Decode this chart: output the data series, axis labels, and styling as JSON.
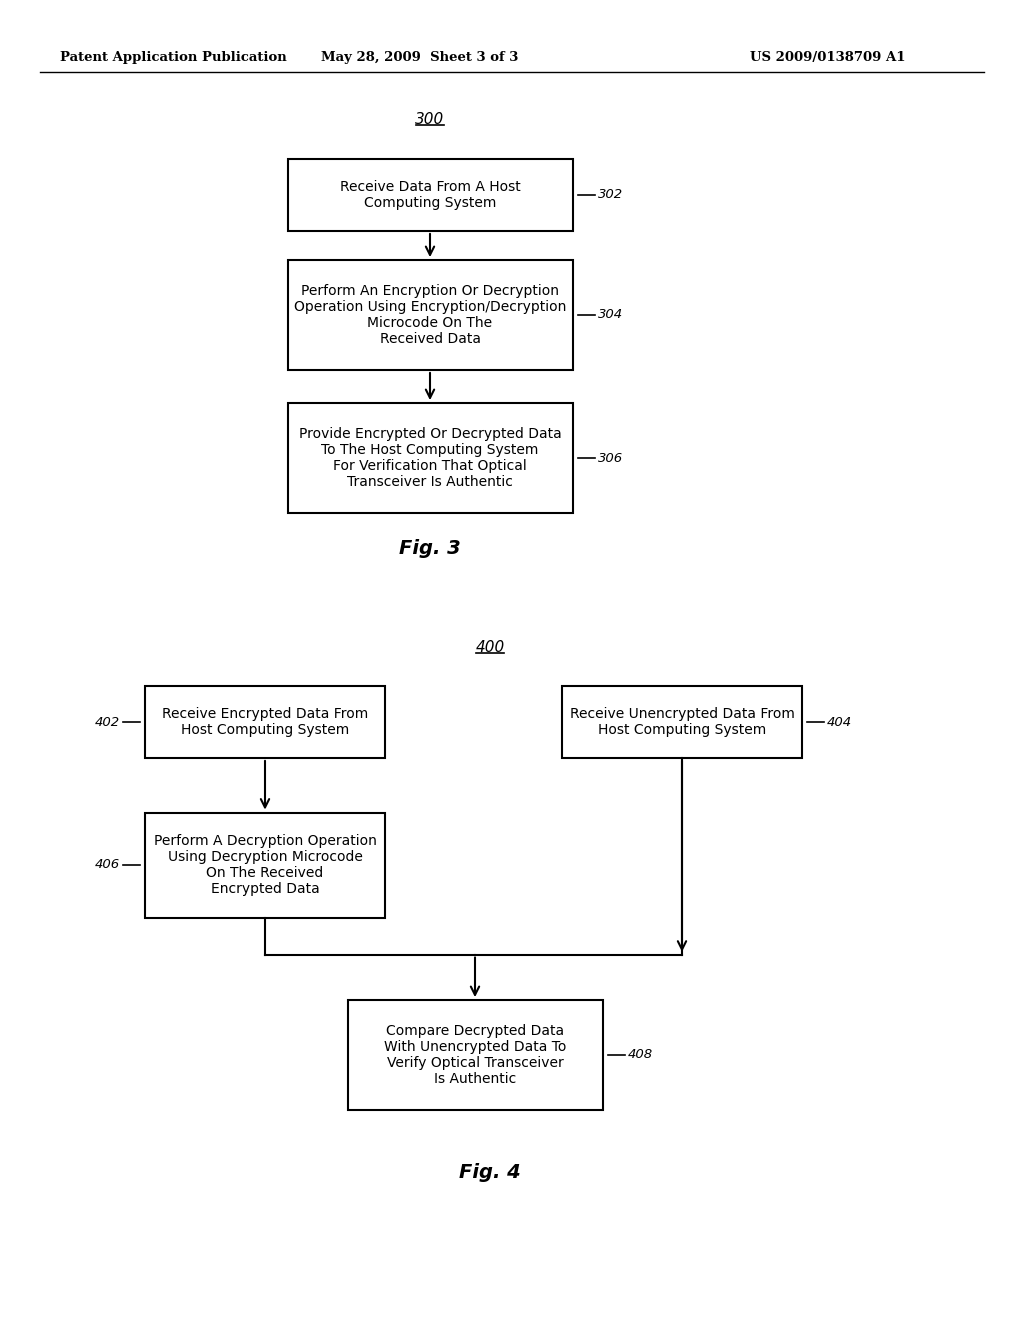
{
  "bg_color": "#ffffff",
  "header_left": "Patent Application Publication",
  "header_mid": "May 28, 2009  Sheet 3 of 3",
  "header_right": "US 2009/0138709 A1",
  "fig3_label": "300",
  "fig3_caption": "Fig. 3",
  "fig4_label": "400",
  "fig4_caption": "Fig. 4",
  "box302_text": "Receive Data From A Host\nComputing System",
  "box302_label": "302",
  "box304_text": "Perform An Encryption Or Decryption\nOperation Using Encryption/Decryption\nMicrocode On The\nReceived Data",
  "box304_label": "304",
  "box306_text": "Provide Encrypted Or Decrypted Data\nTo The Host Computing System\nFor Verification That Optical\nTransceiver Is Authentic",
  "box306_label": "306",
  "box402_text": "Receive Encrypted Data From\nHost Computing System",
  "box402_label": "402",
  "box404_text": "Receive Unencrypted Data From\nHost Computing System",
  "box404_label": "404",
  "box406_text": "Perform A Decryption Operation\nUsing Decryption Microcode\nOn The Received\nEncrypted Data",
  "box406_label": "406",
  "box408_text": "Compare Decrypted Data\nWith Unencrypted Data To\nVerify Optical Transceiver\nIs Authentic",
  "box408_label": "408"
}
